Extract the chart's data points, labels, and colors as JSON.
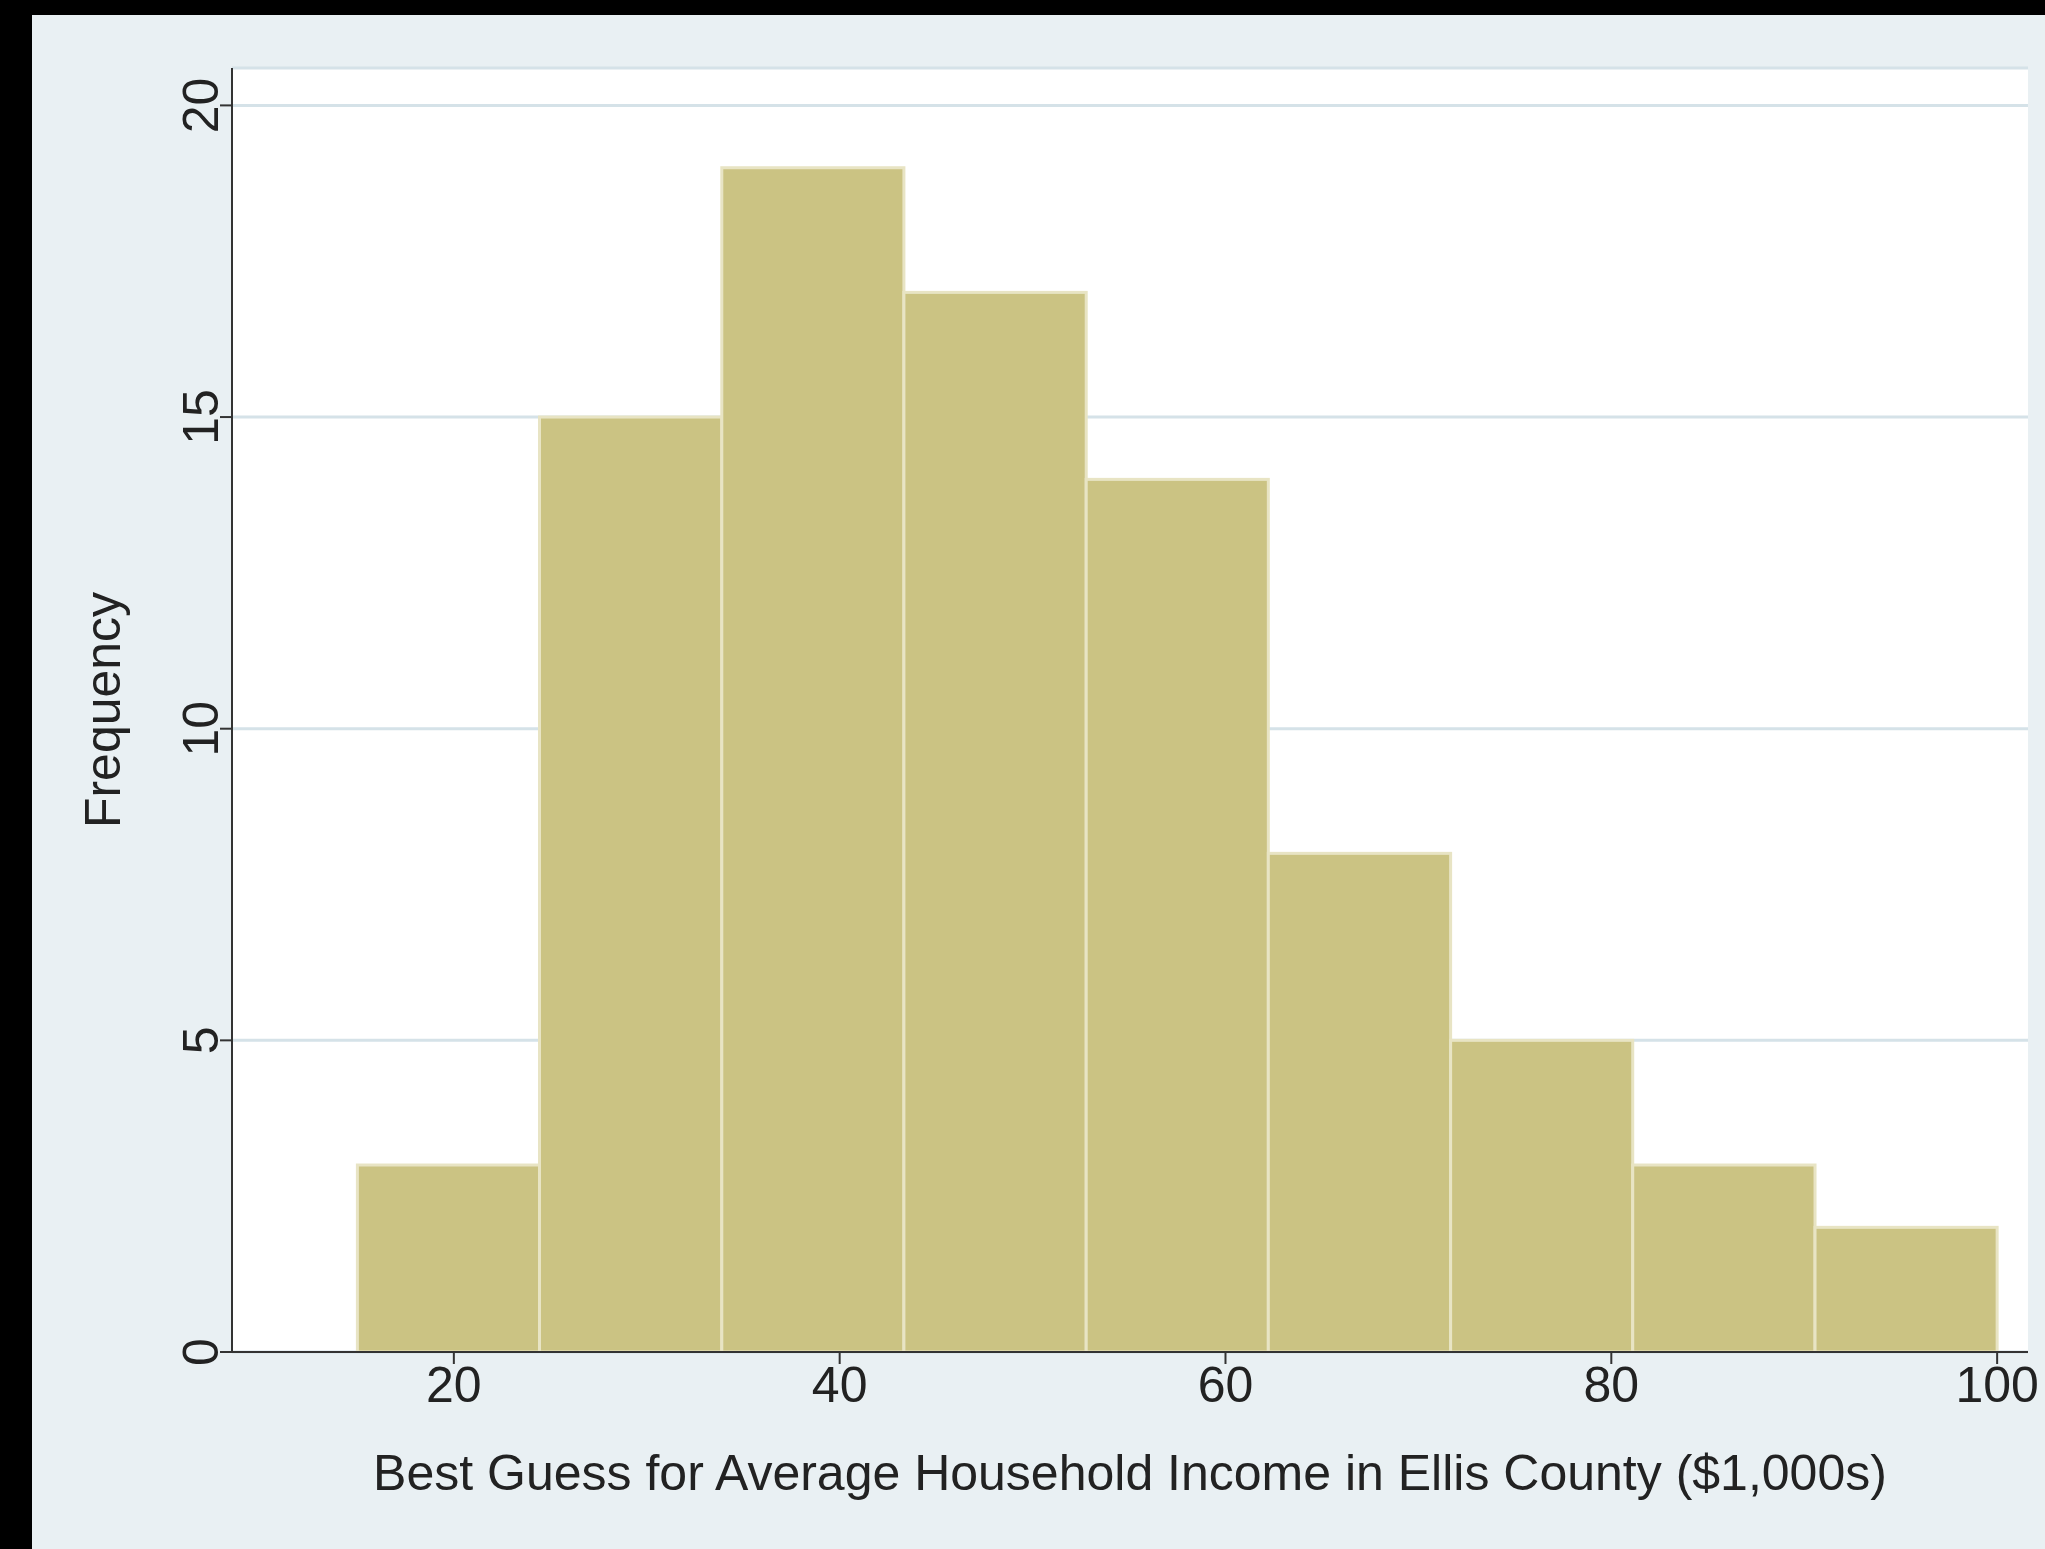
{
  "chart_data": {
    "type": "histogram",
    "xlabel": "Best Guess for Average Household Income in Ellis County ($1,000s)",
    "ylabel": "Frequency",
    "bins": [
      15,
      24.44,
      33.89,
      43.33,
      52.78,
      62.22,
      71.67,
      81.11,
      90.56,
      100
    ],
    "values": [
      3,
      15,
      19,
      17,
      14,
      8,
      5,
      3,
      2
    ],
    "color": "#cbc383",
    "xlim": [
      8.5,
      101.6
    ],
    "xticks": [
      20,
      40,
      60,
      80,
      100
    ],
    "ylim": [
      0,
      20.6
    ],
    "yticks": [
      0,
      5,
      10,
      15,
      20
    ],
    "grid": "y"
  }
}
